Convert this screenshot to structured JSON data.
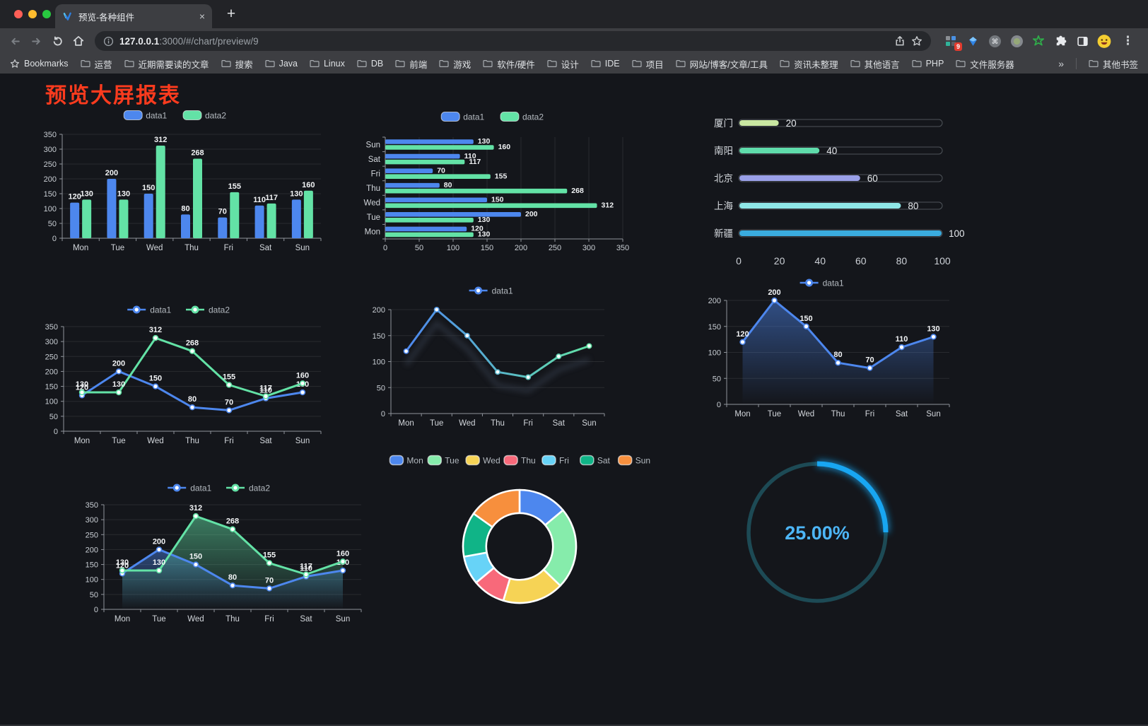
{
  "browser": {
    "tab_title": "预览-各种组件",
    "url_host": "127.0.0.1",
    "url_rest": ":3000/#/chart/preview/9",
    "bookmarks_label": "Bookmarks",
    "bookmarks": [
      "运营",
      "近期需要读的文章",
      "搜索",
      "Java",
      "Linux",
      "DB",
      "前端",
      "游戏",
      "软件/硬件",
      "设计",
      "IDE",
      "项目",
      "网站/博客/文章/工具",
      "资讯未整理",
      "其他语言",
      "PHP",
      "文件服务器"
    ],
    "bookmarks_overflow": "»",
    "other_bookmarks": "其他书签",
    "extension_badge": "9",
    "traffic_light_colors": [
      "#ff5f57",
      "#febc2e",
      "#28c840"
    ]
  },
  "icons": {
    "close-icon": "×",
    "new-tab-icon": "+",
    "kebab-menu-icon": "⋮",
    "back-icon": "arrow-left",
    "forward-icon": "arrow-right",
    "reload-icon": "circular-arrow",
    "home-icon": "house",
    "info-icon": "circle-i",
    "share-icon": "box-arrow-up",
    "bookmark-star-icon": "star-outline",
    "folder-icon": "folder-outline",
    "extensions": [
      "grid-badge",
      "gem",
      "command-circle",
      "dot-circle",
      "green-star",
      "puzzle",
      "side-panel",
      "emoji-avatar"
    ]
  },
  "page": {
    "title": "预览大屏报表",
    "title_color": "#fb3b1e",
    "background": "#14161b"
  },
  "chart_data": [
    {
      "id": "bar-vertical",
      "type": "bar",
      "categories": [
        "Mon",
        "Tue",
        "Wed",
        "Thu",
        "Fri",
        "Sat",
        "Sun"
      ],
      "series": [
        {
          "name": "data1",
          "color": "#4d87ee",
          "values": [
            120,
            200,
            150,
            80,
            70,
            110,
            130
          ]
        },
        {
          "name": "data2",
          "color": "#63e2a6",
          "values": [
            130,
            130,
            312,
            268,
            155,
            117,
            160
          ]
        }
      ],
      "ylim": [
        0,
        350
      ],
      "ytick_step": 50,
      "legend_position": "top",
      "grid": true
    },
    {
      "id": "bar-horizontal",
      "type": "bar",
      "orientation": "horizontal",
      "categories": [
        "Mon",
        "Tue",
        "Wed",
        "Thu",
        "Fri",
        "Sat",
        "Sun"
      ],
      "series": [
        {
          "name": "data1",
          "color": "#4d87ee",
          "values": [
            120,
            200,
            150,
            80,
            70,
            110,
            130
          ]
        },
        {
          "name": "data2",
          "color": "#63e2a6",
          "values": [
            130,
            130,
            312,
            268,
            155,
            117,
            160
          ]
        }
      ],
      "xlim": [
        0,
        350
      ],
      "xtick_step": 50,
      "row_order_top_to_bottom": [
        "Sun",
        "Sat",
        "Fri",
        "Thu",
        "Wed",
        "Tue",
        "Mon"
      ]
    },
    {
      "id": "progress-bars",
      "type": "bar",
      "subtype": "progress",
      "categories": [
        "厦门",
        "南阳",
        "北京",
        "上海",
        "新疆"
      ],
      "values": [
        20,
        40,
        60,
        80,
        100
      ],
      "colors": [
        "#c9e7a1",
        "#5fdcab",
        "#9aa0e8",
        "#8fe7e7",
        "#3aacdf"
      ],
      "xlim": [
        0,
        100
      ],
      "xticks": [
        0,
        20,
        40,
        60,
        80,
        100
      ]
    },
    {
      "id": "line-dual",
      "type": "line",
      "categories": [
        "Mon",
        "Tue",
        "Wed",
        "Thu",
        "Fri",
        "Sat",
        "Sun"
      ],
      "series": [
        {
          "name": "data1",
          "color": "#4d87ee",
          "values": [
            120,
            200,
            150,
            80,
            70,
            110,
            130
          ]
        },
        {
          "name": "data2",
          "color": "#63e2a6",
          "values": [
            130,
            130,
            312,
            268,
            155,
            117,
            160
          ]
        }
      ],
      "ylim": [
        0,
        350
      ],
      "ytick_step": 50,
      "point_labels": true
    },
    {
      "id": "line-gradient",
      "type": "line",
      "categories": [
        "Mon",
        "Tue",
        "Wed",
        "Thu",
        "Fri",
        "Sat",
        "Sun"
      ],
      "series": [
        {
          "name": "data1",
          "gradient": [
            "#4d87ee",
            "#63e2a6"
          ],
          "values": [
            120,
            200,
            150,
            80,
            70,
            110,
            130
          ]
        }
      ],
      "ylim": [
        0,
        200
      ],
      "ytick_step": 50,
      "point_labels": false,
      "shadow": true
    },
    {
      "id": "area-single",
      "type": "area",
      "categories": [
        "Mon",
        "Tue",
        "Wed",
        "Thu",
        "Fri",
        "Sat",
        "Sun"
      ],
      "series": [
        {
          "name": "data1",
          "color": "#4d87ee",
          "values": [
            120,
            200,
            150,
            80,
            70,
            110,
            130
          ]
        }
      ],
      "ylim": [
        0,
        200
      ],
      "ytick_step": 50,
      "point_labels": true
    },
    {
      "id": "area-dual",
      "type": "area",
      "categories": [
        "Mon",
        "Tue",
        "Wed",
        "Thu",
        "Fri",
        "Sat",
        "Sun"
      ],
      "series": [
        {
          "name": "data1",
          "color": "#4d87ee",
          "values": [
            120,
            200,
            150,
            80,
            70,
            110,
            130
          ]
        },
        {
          "name": "data2",
          "color": "#63e2a6",
          "values": [
            130,
            130,
            312,
            268,
            155,
            117,
            160
          ]
        }
      ],
      "ylim": [
        0,
        350
      ],
      "ytick_step": 50,
      "point_labels": true
    },
    {
      "id": "donut",
      "type": "pie",
      "categories": [
        "Mon",
        "Tue",
        "Wed",
        "Thu",
        "Fri",
        "Sat",
        "Sun"
      ],
      "values": [
        120,
        200,
        150,
        80,
        70,
        110,
        130
      ],
      "colors": [
        "#4d87ee",
        "#86ecab",
        "#f6d355",
        "#f8697a",
        "#67d3f7",
        "#10b487",
        "#f78f3d"
      ],
      "inner_radius_ratio": 0.59,
      "legend_position": "top"
    },
    {
      "id": "gauge",
      "type": "gauge",
      "percent": 25,
      "label": "25.00%",
      "color": "#18a6f2",
      "track_color": "#1d4a55",
      "text_color": "#4db6f7"
    }
  ]
}
